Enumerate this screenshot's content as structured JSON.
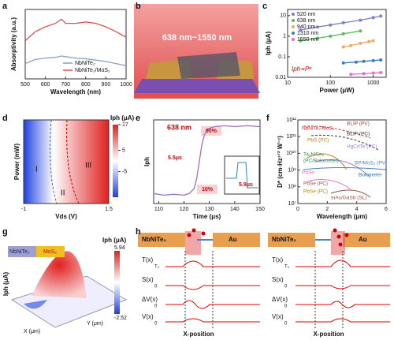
{
  "panels": {
    "a": {
      "label": "a",
      "type": "line",
      "ylabel": "Absorptivity (a.u.)",
      "xlabel": "Wavelength (nm)",
      "xlim": [
        500,
        1000
      ],
      "ylim": [
        0,
        1
      ],
      "xticks": [
        500,
        600,
        700,
        800,
        900,
        1000
      ],
      "x": [
        500,
        550,
        600,
        650,
        680,
        700,
        750,
        800,
        850,
        900,
        950,
        1000
      ],
      "series": [
        {
          "name": "NbNiTe₂",
          "color": "#8a9fc0",
          "values": [
            0.22,
            0.28,
            0.3,
            0.31,
            0.33,
            0.32,
            0.3,
            0.29,
            0.27,
            0.25,
            0.22,
            0.19
          ]
        },
        {
          "name": "NbNiTe₂/MoS₂",
          "color": "#d9534f",
          "values": [
            0.55,
            0.68,
            0.75,
            0.8,
            0.86,
            0.8,
            0.8,
            0.82,
            0.8,
            0.75,
            0.68,
            0.6
          ]
        }
      ]
    },
    "b": {
      "label": "b",
      "text": "638 nm~1550 nm"
    },
    "c": {
      "label": "c",
      "type": "scatter",
      "log": true,
      "ylabel": "Iph (μA)",
      "xlabel": "Power (μW)",
      "annotation": "Iph∝Pᵅ",
      "xlim": [
        10,
        2000
      ],
      "ylim": [
        0.01,
        20
      ],
      "xticks": [
        10,
        100,
        1000
      ],
      "yticks": [
        0.01,
        0.1,
        1,
        10
      ],
      "series": [
        {
          "name": "520 nm",
          "color": "#7b7fc4",
          "x": [
            20,
            50,
            100,
            200,
            500,
            1000,
            1500
          ],
          "values": [
            2,
            2.8,
            3.5,
            4.5,
            6,
            8,
            9.5
          ]
        },
        {
          "name": "638 nm",
          "color": "#5cb85c",
          "x": [
            20,
            50,
            100,
            200,
            500
          ],
          "values": [
            0.6,
            0.8,
            1,
            1.3,
            1.8
          ]
        },
        {
          "name": "940 nm",
          "color": "#f0a868",
          "x": [
            200,
            300,
            500,
            800,
            1000
          ],
          "values": [
            0.3,
            0.35,
            0.45,
            0.55,
            0.6
          ]
        },
        {
          "name": "1310 nm",
          "color": "#3a7bbf",
          "x": [
            200,
            400,
            600,
            1000,
            1500
          ],
          "values": [
            0.05,
            0.055,
            0.06,
            0.065,
            0.07
          ]
        },
        {
          "name": "1550 nm",
          "color": "#e070d0",
          "x": [
            300,
            600,
            1000,
            1500
          ],
          "values": [
            0.014,
            0.015,
            0.016,
            0.017
          ]
        }
      ]
    },
    "d": {
      "label": "d",
      "ylabel": "Power (mW)",
      "xlabel": "Vds (V)",
      "xlim": [
        -1,
        1.5
      ],
      "xticks": [
        -1,
        1.5
      ],
      "cbar_label": "Iph (μA)",
      "clim": [
        -17,
        17
      ],
      "cticks": [
        17,
        5,
        -5
      ],
      "regions": [
        "I",
        "II",
        "III"
      ]
    },
    "e": {
      "label": "e",
      "type": "line",
      "ylabel": "Iph",
      "xlabel": "Time (μs)",
      "xlim": [
        108,
        150
      ],
      "ylim": [
        0,
        1
      ],
      "xticks": [
        110,
        120,
        130,
        140,
        150
      ],
      "x": [
        108,
        112,
        116,
        120,
        122,
        124,
        125,
        126,
        127,
        128,
        129,
        130,
        132,
        136,
        140,
        145,
        150
      ],
      "values": [
        0.12,
        0.1,
        0.11,
        0.1,
        0.12,
        0.18,
        0.3,
        0.5,
        0.7,
        0.82,
        0.88,
        0.9,
        0.92,
        0.93,
        0.92,
        0.93,
        0.92
      ],
      "color": "#a070c0",
      "annotations": [
        "638 nm",
        "90%",
        "10%",
        "5.5μs",
        "5.9μs"
      ]
    },
    "f": {
      "label": "f",
      "ylabel": "D* (cm·Hz¹ᐟ² W⁻¹)",
      "xlabel": "Wavelength (μm)",
      "xlim": [
        0,
        6
      ],
      "ylim": [
        10000000,
        1000000000000
      ],
      "log_y": true,
      "xticks": [
        0,
        2,
        4,
        6
      ],
      "yticks": [
        {
          "value": 10000000,
          "label": "10⁷"
        },
        {
          "value": 100000000,
          "label": "10⁸"
        },
        {
          "value": 1000000000,
          "label": "10⁹"
        },
        {
          "value": 10000000000,
          "label": "10¹⁰"
        },
        {
          "value": 100000000000,
          "label": "10¹¹"
        },
        {
          "value": 1000000000000,
          "label": "10¹²"
        }
      ],
      "curves": [
        {
          "name": "NbNiTe₂/MoS₂",
          "color": "#d62728"
        },
        {
          "name": "BLIP (PV)",
          "color": "#c0392b"
        },
        {
          "name": "BLIP (PC)",
          "color": "#333333"
        },
        {
          "name": "PbS (PC)",
          "color": "#b8860b"
        },
        {
          "name": "HgCdTe (PC)",
          "color": "#9b7fd0"
        },
        {
          "name": "Ta₂NiSe₅",
          "color": "#2e8b57"
        },
        {
          "name": "(PC/Bolometer)",
          "color": "#2e8b57"
        },
        {
          "name": "BP/MoS₂ (PV)",
          "color": "#4f81bd"
        },
        {
          "name": "PbSe",
          "color": "#e377c2"
        },
        {
          "name": "Bolometer",
          "color": "#1f77b4"
        },
        {
          "name": "PbSe (PC)",
          "color": "#8c564b"
        },
        {
          "name": "PbSe (PC)",
          "color": "#b8860b"
        },
        {
          "name": "InAs/GaSb (SL)",
          "color": "#8c564b"
        }
      ]
    },
    "g": {
      "label": "g",
      "ylabel": "Iph (μA)",
      "materials": [
        "NbNiTe₂",
        "MoS₂"
      ],
      "cbar_label": "Iph (μA)",
      "cticks": [
        5.94,
        -2.52
      ],
      "xlabel": "X (μm)",
      "yaxis": "Y (μm)"
    },
    "h": {
      "label": "h",
      "metal": "NbNiTe₂",
      "contact": "Au",
      "rows": [
        "T(x)",
        "S(x)",
        "ΔV(x)",
        "V(x)"
      ],
      "baselines": [
        "T₀",
        "0",
        "0",
        "0"
      ],
      "xlabel": "X-position"
    }
  }
}
